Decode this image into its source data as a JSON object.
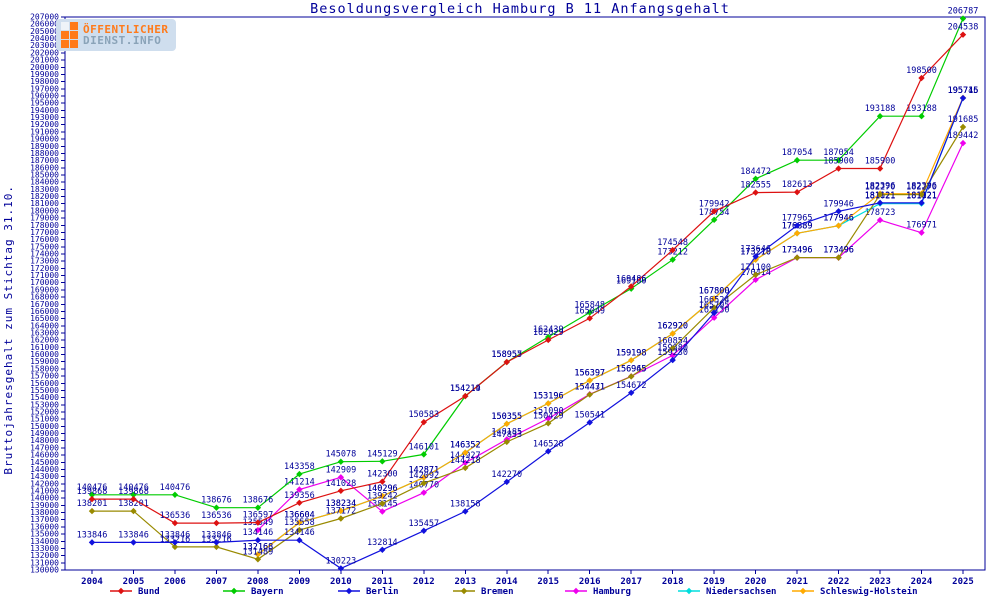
{
  "header": {
    "logo": {
      "line1": "ÖFFENTLICHER",
      "line2": "DIENST.INFO"
    }
  },
  "colors": {
    "axis_and_text": "#000099",
    "background": "#ffffff",
    "logo_orange": "#ff7a1a",
    "logo_gray_blue": "#8aa3b8",
    "logo_box": "#cfdeee"
  },
  "chart_data": {
    "type": "line",
    "title": "Besoldungsvergleich Hamburg B 11 Anfangsgehalt",
    "ylabel": "Bruttojahresgehalt zum Stichtag 31.10.",
    "xlabel": "",
    "ylim": [
      130000,
      207000
    ],
    "ytick_step": 1000,
    "grid": false,
    "legend_position": "bottom",
    "point_labels": true,
    "x": [
      2004,
      2005,
      2006,
      2007,
      2008,
      2009,
      2010,
      2011,
      2012,
      2013,
      2014,
      2015,
      2016,
      2017,
      2018,
      2019,
      2020,
      2021,
      2022,
      2023,
      2024,
      2025
    ],
    "series": [
      {
        "name": "Bund",
        "color": "#dd1111",
        "values": [
          139868,
          139868,
          136536,
          136536,
          136597,
          139356,
          141028,
          142300,
          150583,
          154214,
          158955,
          162029,
          165049,
          169486,
          174548,
          179942,
          182555,
          182613,
          185900,
          185900,
          198500,
          204538
        ]
      },
      {
        "name": "Bayern",
        "color": "#00cc00",
        "values": [
          140476,
          140476,
          140476,
          138676,
          138676,
          143358,
          145078,
          145129,
          146101,
          154219,
          158957,
          162439,
          165848,
          169180,
          173212,
          178754,
          184472,
          187054,
          187054,
          193188,
          193188,
          206787
        ]
      },
      {
        "name": "Berlin",
        "color": "#1111dd",
        "values": [
          133846,
          133846,
          133846,
          133846,
          134146,
          134146,
          130223,
          132814,
          135457,
          138158,
          142270,
          146528,
          150541,
          154672,
          159230,
          165795,
          173646,
          177965,
          179946,
          181121,
          181121,
          195715
        ]
      },
      {
        "name": "Bremen",
        "color": "#998a00",
        "values": [
          138201,
          138201,
          133216,
          133216,
          131489,
          135558,
          137172,
          139242,
          142092,
          144218,
          147833,
          150429,
          154431,
          156945,
          160854,
          166524,
          171100,
          173496,
          173496,
          182270,
          182270,
          191685
        ]
      },
      {
        "name": "Hamburg",
        "color": "#ee00ee",
        "values": [
          null,
          null,
          null,
          null,
          135549,
          141214,
          142909,
          138145,
          140770,
          144927,
          148185,
          151090,
          154471,
          156965,
          159880,
          165130,
          170414,
          173496,
          173496,
          178723,
          176971,
          189442
        ]
      },
      {
        "name": "Niedersachsen",
        "color": "#00dddd",
        "values": [
          null,
          null,
          null,
          null,
          132168,
          136604,
          138234,
          140296,
          142871,
          146352,
          150355,
          153196,
          156397,
          159198,
          162920,
          167800,
          173210,
          176889,
          177946,
          181021,
          181021,
          195715
        ]
      },
      {
        "name": "Schleswig-Holstein",
        "color": "#ffaa00",
        "values": [
          null,
          null,
          null,
          null,
          132168,
          136604,
          138234,
          140296,
          142871,
          146352,
          150355,
          153196,
          156397,
          159198,
          162920,
          167800,
          173210,
          176889,
          177946,
          182396,
          182396,
          195746
        ]
      }
    ]
  }
}
